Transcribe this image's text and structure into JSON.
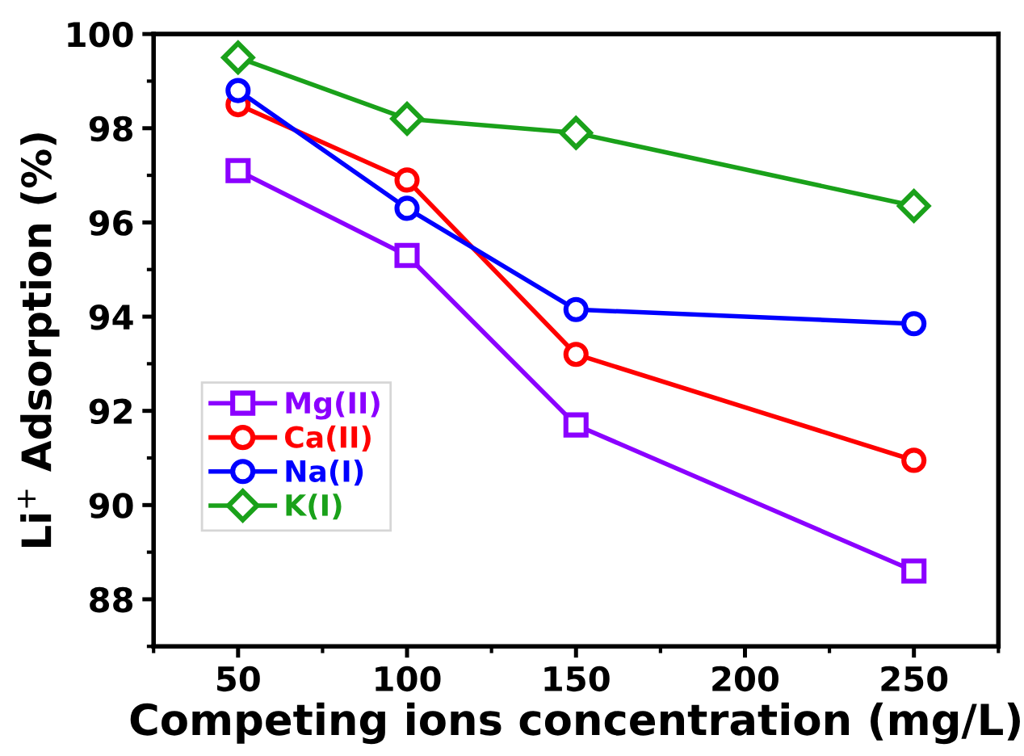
{
  "chart_data": {
    "type": "line",
    "xlabel": "Competing ions concentration (mg/L)",
    "ylabel": "Li$^{+}$ Adsorption (%)",
    "x": [
      50,
      100,
      150,
      250
    ],
    "xlim": [
      25,
      275
    ],
    "xticks": [
      50,
      100,
      150,
      200,
      250
    ],
    "ylim": [
      87,
      100
    ],
    "yticks": [
      88,
      90,
      92,
      94,
      96,
      98,
      100
    ],
    "grid": false,
    "legend": "center left",
    "series": [
      {
        "name": "Mg(II)",
        "color": "#8b00ff",
        "marker": "square",
        "values": [
          97.1,
          95.3,
          91.7,
          88.6
        ]
      },
      {
        "name": "Ca(II)",
        "color": "#ff0000",
        "marker": "circle",
        "values": [
          98.5,
          96.9,
          93.2,
          90.95
        ]
      },
      {
        "name": "Na(I)",
        "color": "#0000ff",
        "marker": "circle",
        "values": [
          98.8,
          96.3,
          94.15,
          93.85
        ]
      },
      {
        "name": "K(I)",
        "color": "#1aa11a",
        "marker": "diamond",
        "values": [
          99.5,
          98.2,
          97.9,
          96.35
        ]
      }
    ]
  }
}
